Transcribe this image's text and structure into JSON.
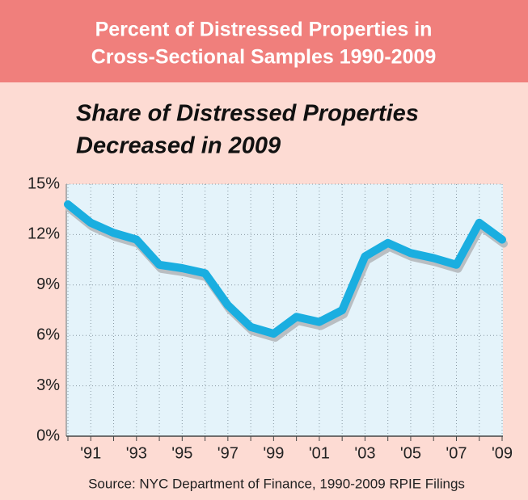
{
  "chart_data": {
    "type": "line",
    "title": [
      "Percent of Distressed Properties in",
      "Cross-Sectional Samples 1990-2009"
    ],
    "subtitle": [
      "Share of Distressed Properties",
      "Decreased in 2009"
    ],
    "source": "Source: NYC Department of Finance, 1990-2009 RPIE Filings",
    "categories": [
      null,
      "'91",
      null,
      "'93",
      null,
      "'95",
      null,
      "'97",
      null,
      "'99",
      null,
      "'01",
      null,
      "'03",
      null,
      "'05",
      null,
      "'07",
      null,
      "'09"
    ],
    "series": [
      {
        "color": "#1aaee0",
        "values": [
          13.8,
          12.7,
          12.1,
          11.7,
          10.2,
          10.0,
          9.7,
          7.8,
          6.5,
          6.1,
          7.1,
          6.8,
          7.5,
          10.7,
          11.5,
          10.9,
          10.6,
          10.2,
          12.7,
          11.7
        ]
      }
    ],
    "ylim": [
      0,
      15
    ],
    "yticks": [
      {
        "value": 0,
        "label": "0%"
      },
      {
        "value": 3,
        "label": "3%"
      },
      {
        "value": 6,
        "label": "6%"
      },
      {
        "value": 9,
        "label": "9%"
      },
      {
        "value": 12,
        "label": "12%"
      },
      {
        "value": 15,
        "label": "15%"
      }
    ],
    "grid": true
  }
}
